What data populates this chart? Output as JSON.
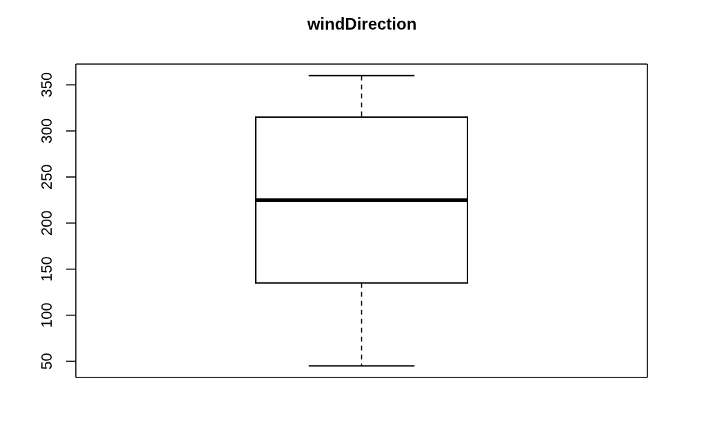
{
  "chart_data": {
    "type": "box",
    "title": "windDirection",
    "categories": [
      null
    ],
    "boxes": [
      {
        "low": 45,
        "q1": 135,
        "median": 225,
        "q3": 315,
        "high": 360
      }
    ],
    "ylim": [
      32.4,
      372.6
    ],
    "yticks": [
      50,
      100,
      150,
      200,
      250,
      300,
      350
    ],
    "tick_labels": "y"
  }
}
